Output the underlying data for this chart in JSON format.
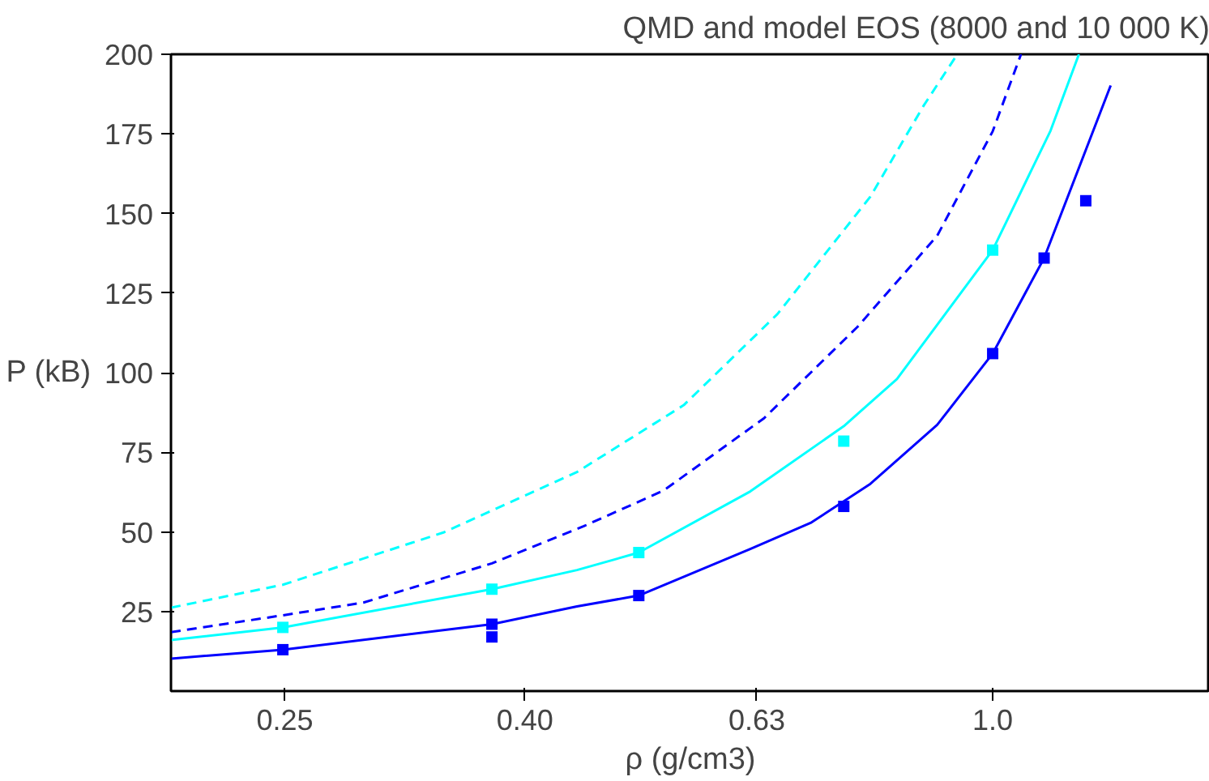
{
  "chart_data": {
    "type": "line",
    "title": "QMD and model EOS (8000 and 10 000 K)",
    "xlabel": "ρ (g/cm3)",
    "ylabel": "P (kB)",
    "log": "x",
    "grid": false,
    "xlim": [
      0.2,
      1.53
    ],
    "ylim": [
      0,
      200
    ],
    "xticks": [
      0.25,
      {
        "value": 0.4,
        "label": "0.40"
      },
      0.63,
      {
        "value": 1.0,
        "label": "1.0"
      }
    ],
    "yticks": [
      25,
      50,
      75,
      100,
      125,
      150,
      175,
      200
    ],
    "series": [
      {
        "color": "#00ffff",
        "line_style": "dashed",
        "marker": "none",
        "x": [
          0.2,
          0.249,
          0.341,
          0.443,
          0.546,
          0.656,
          0.787,
          0.874,
          0.933
        ],
        "values": [
          26.2,
          33.4,
          49.8,
          68.8,
          89.8,
          118.4,
          155.3,
          184,
          200
        ]
      },
      {
        "color": "#0000ff",
        "line_style": "dashed",
        "marker": "none",
        "x": [
          0.2,
          0.249,
          0.2916,
          0.375,
          0.449,
          0.525,
          0.639,
          0.767,
          0.897,
          1.0,
          1.057
        ],
        "values": [
          18.5,
          23.8,
          27.8,
          40.1,
          51.8,
          63,
          85.7,
          114.3,
          143,
          175.8,
          200
        ]
      },
      {
        "color": "#00ffff",
        "line_style": "solid",
        "marker": "none",
        "x": [
          0.2,
          0.249,
          0.375,
          0.443,
          0.5,
          0.622,
          0.747,
          0.829,
          1.0,
          1.12,
          1.184
        ],
        "values": [
          16,
          20,
          32,
          38,
          43.5,
          62.7,
          83.2,
          98,
          138.5,
          176,
          200
        ]
      },
      {
        "color": "#0000ff",
        "line_style": "solid",
        "marker": "none",
        "x": [
          0.2,
          0.249,
          0.375,
          0.443,
          0.5,
          0.622,
          0.7,
          0.787,
          0.897,
          1.0,
          1.106,
          1.26
        ],
        "values": [
          10.2,
          13,
          21,
          26.6,
          30,
          44.6,
          52.8,
          65.1,
          83.6,
          106,
          136,
          190.2
        ]
      },
      {
        "type": "scatter",
        "color": "#00ffff",
        "marker": "square",
        "x": [
          0.249,
          0.375,
          0.5,
          0.747,
          1.0
        ],
        "values": [
          20,
          32,
          43.5,
          78.5,
          138.5
        ]
      },
      {
        "type": "scatter",
        "color": "#0000ff",
        "marker": "square",
        "x": [
          0.249,
          0.375,
          0.375,
          0.5,
          0.747,
          1.0,
          1.106,
          1.2
        ],
        "values": [
          13,
          21,
          17,
          30,
          58,
          106,
          136,
          154
        ]
      }
    ]
  }
}
